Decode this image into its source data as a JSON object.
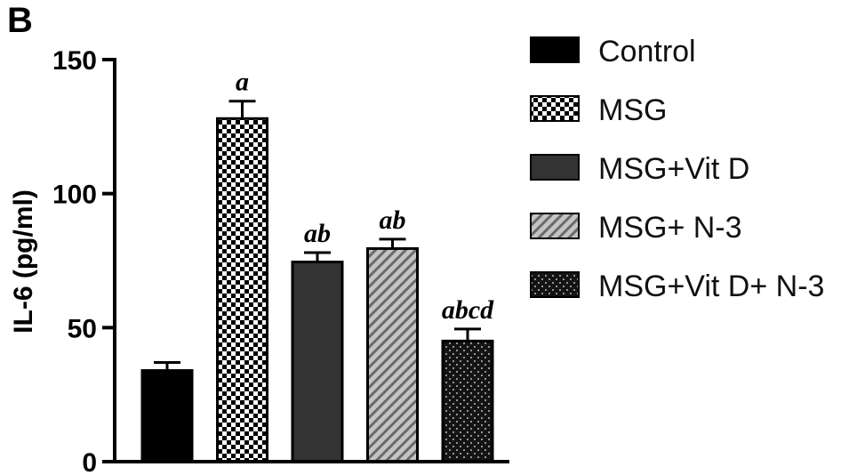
{
  "panel_label": "B",
  "chart_data": {
    "type": "bar",
    "title": "",
    "xlabel": "",
    "ylabel": "IL-6 (pg/ml)",
    "ylim": [
      0,
      150
    ],
    "yticks": [
      0,
      50,
      100,
      150
    ],
    "grid": false,
    "legend_position": "right",
    "categories": [
      "Control",
      "MSG",
      "MSG+Vit D",
      "MSG+ N-3",
      "MSG+Vit D+ N-3"
    ],
    "values": [
      34,
      128,
      74.5,
      79.5,
      45
    ],
    "errors": [
      3,
      6.5,
      3.5,
      3.5,
      4.5
    ],
    "annotations": [
      "",
      "a",
      "ab",
      "ab",
      "abcd"
    ],
    "legend": [
      "Control",
      "MSG",
      "MSG+Vit D",
      "MSG+ N-3",
      "MSG+Vit D+ N-3"
    ],
    "fills": [
      "solid-black",
      "checkerboard",
      "solid-dark-gray",
      "diagonal-stripes",
      "dotted-black"
    ],
    "colors": {
      "control": "#000000",
      "msg_dark": "#000000",
      "msg_light": "#ffffff",
      "vitd": "#333333",
      "n3_stripe": "#6a6a6a",
      "n3_bg": "#c4c4c4",
      "combo": "#141414",
      "combo_dot": "#bdbdbd"
    }
  }
}
